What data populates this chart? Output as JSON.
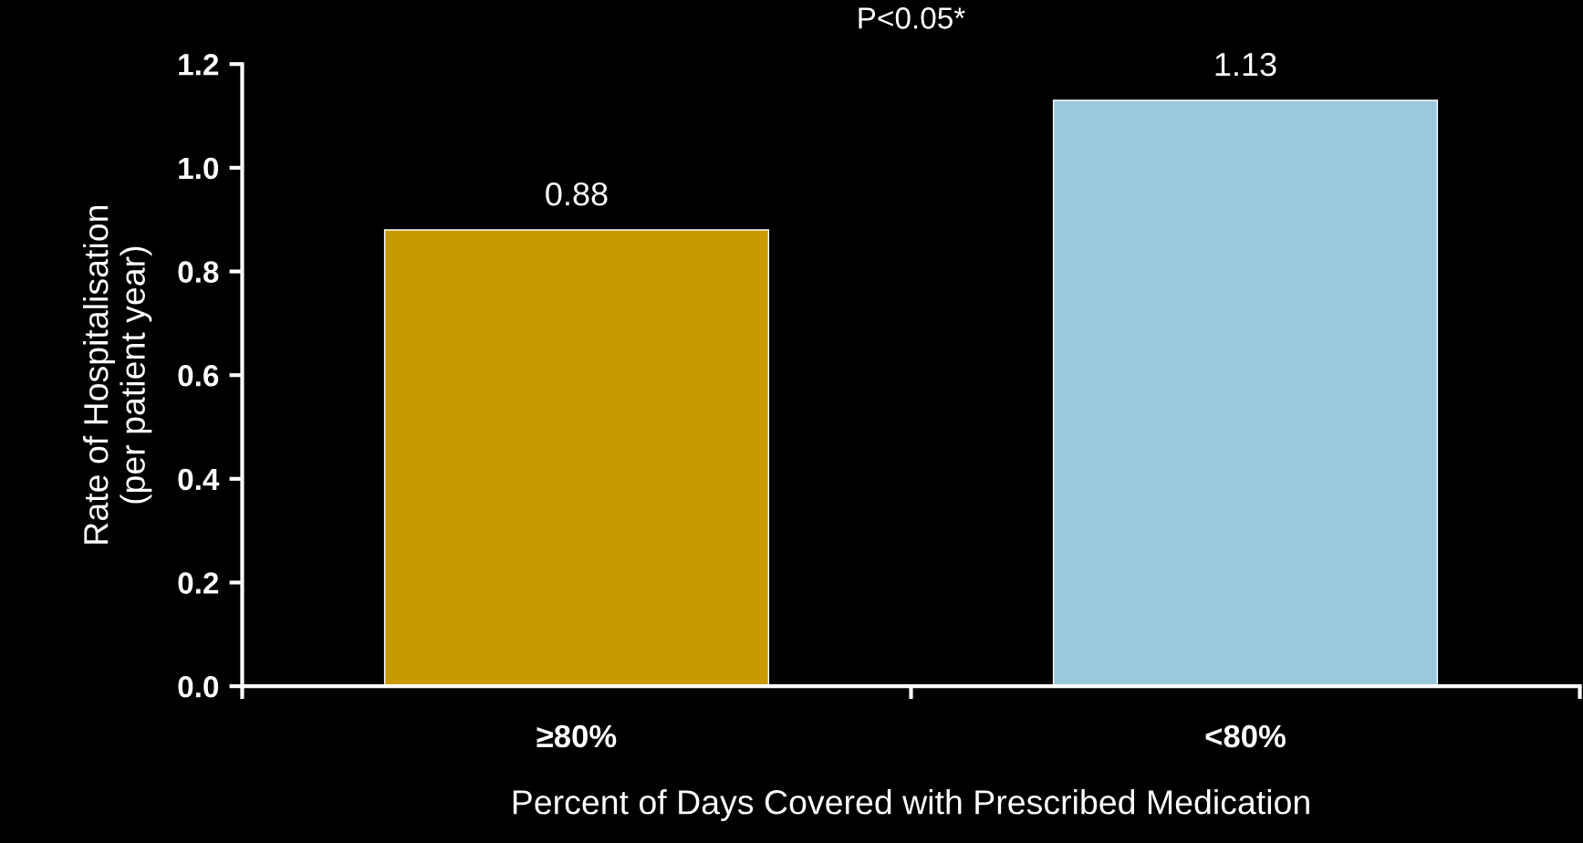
{
  "chart_data": {
    "type": "bar",
    "title": "P<0.05*",
    "xlabel": "Percent of Days Covered with Prescribed Medication",
    "ylabel": "Rate of Hospitalisation\n(per patient year)",
    "categories": [
      "≥80%",
      "<80%"
    ],
    "values": [
      0.88,
      1.13
    ],
    "colors": [
      "#c99a00",
      "#9ac8dc"
    ],
    "ylim": [
      0,
      1.2
    ],
    "yticks": [
      {
        "value": 0,
        "label": "0.0"
      },
      {
        "value": 0.2,
        "label": "0.2"
      },
      {
        "value": 0.4,
        "label": "0.4"
      },
      {
        "value": 0.6,
        "label": "0.6"
      },
      {
        "value": 0.8,
        "label": "0.8"
      },
      {
        "value": 1.0,
        "label": "1.0"
      },
      {
        "value": 1.2,
        "label": "1.2"
      }
    ],
    "data_labels": true,
    "grid": false,
    "legend": false
  }
}
